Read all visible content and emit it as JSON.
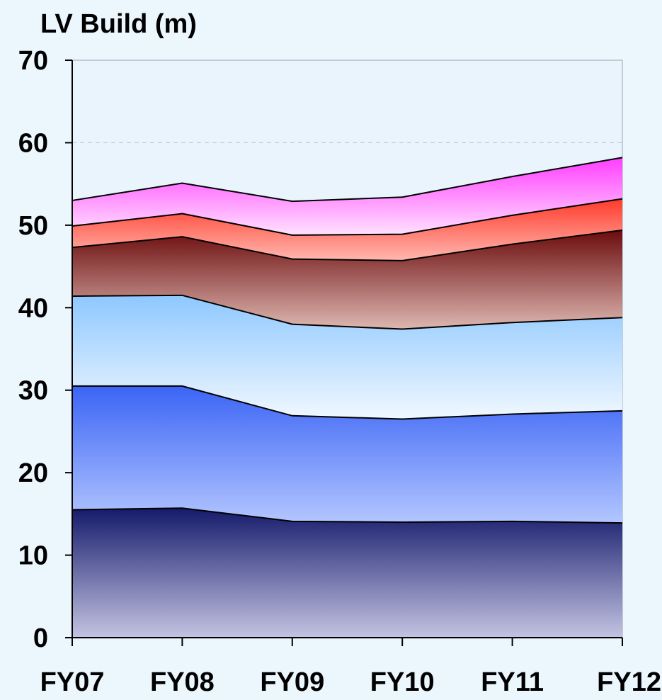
{
  "chart_data": {
    "type": "area",
    "stacked": true,
    "ylabel": "LV Build (m)",
    "categories": [
      "FY07",
      "FY08",
      "FY09",
      "FY10",
      "FY11",
      "FY12"
    ],
    "ylim": [
      0,
      70
    ],
    "yticks": [
      0,
      10,
      20,
      30,
      40,
      50,
      60,
      70
    ],
    "grid": {
      "horizontal_dashed_at": [
        60
      ]
    },
    "series": [
      {
        "values": [
          15.5,
          15.7,
          14.1,
          14.0,
          14.1,
          13.9
        ],
        "colors": [
          "#151a6b",
          "#c3c4e2"
        ]
      },
      {
        "values": [
          15.0,
          14.8,
          12.8,
          12.5,
          13.0,
          13.6
        ],
        "colors": [
          "#3b64f5",
          "#b3c6ff"
        ]
      },
      {
        "values": [
          10.9,
          11.0,
          11.1,
          10.9,
          11.1,
          11.3
        ],
        "colors": [
          "#8ec8ff",
          "#f1f8ff"
        ]
      },
      {
        "values": [
          5.9,
          7.1,
          7.9,
          8.3,
          9.5,
          10.6
        ],
        "colors": [
          "#6b0c0c",
          "#ddb7b1"
        ]
      },
      {
        "values": [
          2.6,
          2.8,
          2.9,
          3.2,
          3.5,
          3.8
        ],
        "colors": [
          "#ff3a2a",
          "#ffb8b0"
        ]
      },
      {
        "values": [
          3.1,
          3.7,
          4.1,
          4.5,
          4.7,
          5.0
        ],
        "colors": [
          "#ff3dff",
          "#ffe2ff"
        ]
      }
    ]
  }
}
